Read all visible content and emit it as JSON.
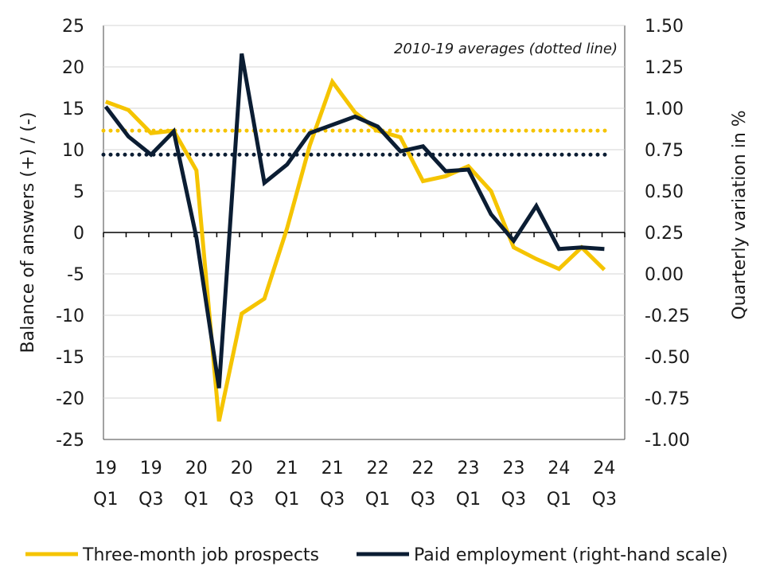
{
  "chart_data": {
    "type": "line",
    "annotation": "2010-19 averages (dotted line)",
    "ylabel_left": "Balance of answers (+) / (-)",
    "ylabel_right": "Quarterly variation in %",
    "ylim_left": [
      -25,
      25
    ],
    "ylim_right": [
      -1.0,
      1.5
    ],
    "yticks_left": [
      "25",
      "20",
      "15",
      "10",
      "5",
      "0",
      "-5",
      "-10",
      "-15",
      "-20",
      "-25"
    ],
    "yticks_right": [
      "1.50",
      "1.25",
      "1.00",
      "0.75",
      "0.50",
      "0.25",
      "0.00",
      "-0.25",
      "-0.50",
      "-0.75",
      "-1.00"
    ],
    "x_labels": [
      {
        "year": "19",
        "quarter": "Q1"
      },
      {
        "year": "19",
        "quarter": "Q3"
      },
      {
        "year": "20",
        "quarter": "Q1"
      },
      {
        "year": "20",
        "quarter": "Q3"
      },
      {
        "year": "21",
        "quarter": "Q1"
      },
      {
        "year": "21",
        "quarter": "Q3"
      },
      {
        "year": "22",
        "quarter": "Q1"
      },
      {
        "year": "22",
        "quarter": "Q3"
      },
      {
        "year": "23",
        "quarter": "Q1"
      },
      {
        "year": "23",
        "quarter": "Q3"
      },
      {
        "year": "24",
        "quarter": "Q1"
      },
      {
        "year": "24",
        "quarter": "Q3"
      }
    ],
    "quarters": [
      "2019 Q1",
      "2019 Q2",
      "2019 Q3",
      "2019 Q4",
      "2020 Q1",
      "2020 Q2",
      "2020 Q3",
      "2020 Q4",
      "2021 Q1",
      "2021 Q2",
      "2021 Q3",
      "2021 Q4",
      "2022 Q1",
      "2022 Q2",
      "2022 Q3",
      "2022 Q4",
      "2023 Q1",
      "2023 Q2",
      "2023 Q3",
      "2023 Q4",
      "2024 Q1",
      "2024 Q2",
      "2024 Q3"
    ],
    "series": [
      {
        "name": "Three-month job prospects",
        "axis": "left",
        "color": "#f5c400",
        "values": [
          15.8,
          14.8,
          12.0,
          12.3,
          7.5,
          -22.8,
          -9.8,
          -8.0,
          0.5,
          10.5,
          18.2,
          14.5,
          12.3,
          11.5,
          6.2,
          6.8,
          8.0,
          5.0,
          -1.8,
          -3.2,
          -4.4,
          -1.8,
          -4.5
        ],
        "average": 12.3
      },
      {
        "name": "Paid employment (right-hand scale)",
        "axis": "right",
        "color": "#0b1d33",
        "values": [
          1.01,
          0.83,
          0.72,
          0.86,
          0.22,
          -0.69,
          1.33,
          0.55,
          0.66,
          0.85,
          0.9,
          0.95,
          0.89,
          0.74,
          0.77,
          0.62,
          0.63,
          0.36,
          0.2,
          0.41,
          0.15,
          0.16,
          0.15
        ],
        "average": 0.72
      }
    ]
  }
}
